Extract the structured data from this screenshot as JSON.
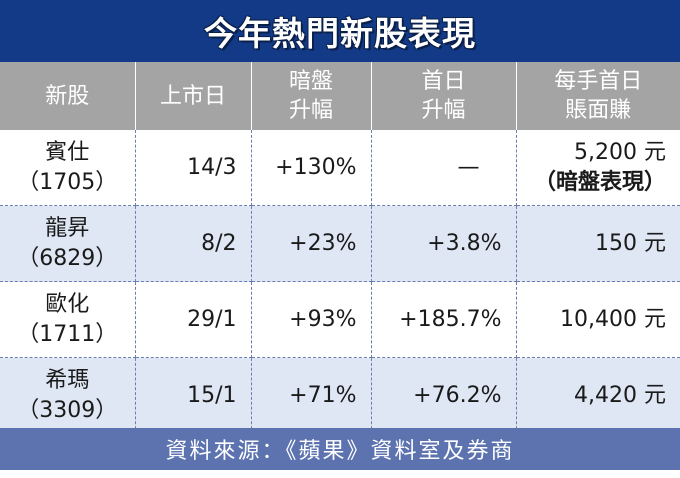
{
  "title": "今年熱門新股表現",
  "headers": [
    {
      "line1": "新股",
      "line2": ""
    },
    {
      "line1": "上市日",
      "line2": ""
    },
    {
      "line1": "暗盤",
      "line2": "升幅"
    },
    {
      "line1": "首日",
      "line2": "升幅"
    },
    {
      "line1": "每手首日",
      "line2": "賬面賺"
    }
  ],
  "rows": [
    {
      "name": "賓仕",
      "code": "（1705）",
      "date": "14/3",
      "grey": "+130%",
      "first_day": "—",
      "profit": "5,200 元",
      "profit_note": "（暗盤表現）"
    },
    {
      "name": "龍昇",
      "code": "（6829）",
      "date": "8/2",
      "grey": "+23%",
      "first_day": "+3.8%",
      "profit": "150 元",
      "profit_note": ""
    },
    {
      "name": "歐化",
      "code": "（1711）",
      "date": "29/1",
      "grey": "+93%",
      "first_day": "+185.7%",
      "profit": "10,400 元",
      "profit_note": ""
    },
    {
      "name": "希瑪",
      "code": "（3309）",
      "date": "15/1",
      "grey": "+71%",
      "first_day": "+76.2%",
      "profit": "4,420 元",
      "profit_note": ""
    }
  ],
  "source": "資料來源：《蘋果》資料室及券商",
  "colors": {
    "title_bg": "#123a86",
    "header_bg": "#a4a4a4",
    "stripe": "#dfe7f4",
    "footer_bg": "#5c73b0"
  }
}
